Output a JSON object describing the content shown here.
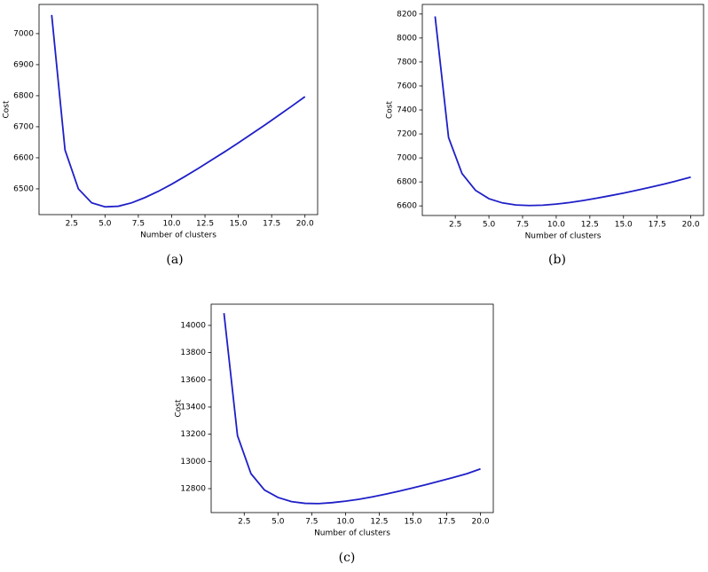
{
  "chart_data": [
    {
      "type": "line",
      "caption": "(a)",
      "xlabel": "Number of clusters",
      "ylabel": "Cost",
      "x": [
        1,
        2,
        3,
        4,
        5,
        6,
        7,
        8,
        9,
        10,
        11,
        12,
        13,
        14,
        15,
        16,
        17,
        18,
        19,
        20
      ],
      "series": [
        {
          "color": "#1f1fc8",
          "values": [
            7060,
            6625,
            6500,
            6455,
            6442,
            6444,
            6455,
            6472,
            6492,
            6515,
            6540,
            6566,
            6593,
            6620,
            6648,
            6677,
            6706,
            6736,
            6766,
            6797
          ]
        }
      ],
      "xlim": [
        0.05,
        20.95
      ],
      "ylim": [
        6417,
        7094
      ],
      "xticks": [
        2.5,
        {
          "value": 5,
          "label": "5.0"
        },
        7.5,
        {
          "value": 10,
          "label": "10.0"
        },
        12.5,
        {
          "value": 15,
          "label": "15.0"
        },
        17.5,
        {
          "value": 20,
          "label": "20.0"
        }
      ],
      "yticks": [
        6500,
        6600,
        6700,
        6800,
        6900,
        7000
      ]
    },
    {
      "type": "line",
      "caption": "(b)",
      "xlabel": "Number of clusters",
      "ylabel": "Cost",
      "x": [
        1,
        2,
        3,
        4,
        5,
        6,
        7,
        8,
        9,
        10,
        11,
        12,
        13,
        14,
        15,
        16,
        17,
        18,
        19,
        20
      ],
      "series": [
        {
          "color": "#1f1fc8",
          "values": [
            8180,
            7170,
            6870,
            6730,
            6660,
            6625,
            6608,
            6603,
            6606,
            6615,
            6628,
            6645,
            6664,
            6685,
            6707,
            6731,
            6756,
            6782,
            6810,
            6840
          ]
        }
      ],
      "xlim": [
        0.05,
        20.95
      ],
      "ylim": [
        6520,
        8280
      ],
      "xticks": [
        2.5,
        {
          "value": 5,
          "label": "5.0"
        },
        7.5,
        {
          "value": 10,
          "label": "10.0"
        },
        12.5,
        {
          "value": 15,
          "label": "15.0"
        },
        17.5,
        {
          "value": 20,
          "label": "20.0"
        }
      ],
      "yticks": [
        6600,
        6800,
        7000,
        7200,
        7400,
        7600,
        7800,
        8000,
        8200
      ]
    },
    {
      "type": "line",
      "caption": "(c)",
      "xlabel": "Number of clusters",
      "ylabel": "Cost",
      "x": [
        1,
        2,
        3,
        4,
        5,
        6,
        7,
        8,
        9,
        10,
        11,
        12,
        13,
        14,
        15,
        16,
        17,
        18,
        19,
        20
      ],
      "series": [
        {
          "color": "#1f1fc8",
          "values": [
            14090,
            13190,
            12910,
            12790,
            12735,
            12705,
            12692,
            12690,
            12697,
            12708,
            12722,
            12740,
            12760,
            12782,
            12806,
            12830,
            12856,
            12882,
            12910,
            12945
          ]
        }
      ],
      "xlim": [
        0.05,
        20.95
      ],
      "ylim": [
        12624,
        14156
      ],
      "xticks": [
        2.5,
        {
          "value": 5,
          "label": "5.0"
        },
        7.5,
        {
          "value": 10,
          "label": "10.0"
        },
        12.5,
        {
          "value": 15,
          "label": "15.0"
        },
        17.5,
        {
          "value": 20,
          "label": "20.0"
        }
      ],
      "yticks": [
        12800,
        13000,
        13200,
        13400,
        13600,
        13800,
        14000
      ]
    }
  ]
}
